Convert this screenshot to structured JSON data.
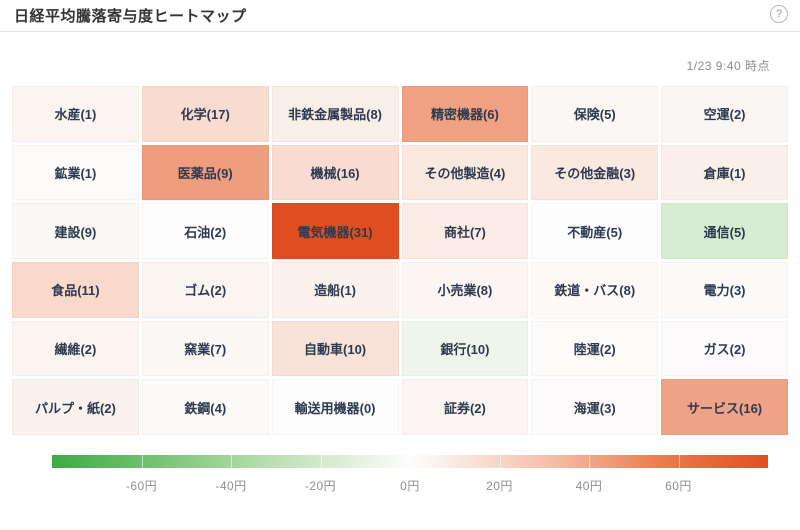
{
  "header": {
    "help_glyph": "?"
  },
  "as_of": "1/23 9:40 時点",
  "chart_data": {
    "type": "heatmap",
    "title": "日経平均騰落寄与度ヒートマップ",
    "as_of": "1/23 9:40 時点",
    "unit": "円",
    "grid": {
      "rows": 6,
      "cols": 6
    },
    "cells": [
      {
        "sector": "水産",
        "count": 1,
        "color": "#fbf4f1",
        "value_yen_approx": 2
      },
      {
        "sector": "化学",
        "count": 17,
        "color": "#f8dcd0",
        "value_yen_approx": 12
      },
      {
        "sector": "非鉄金属製品",
        "count": 8,
        "color": "#faeee8",
        "value_yen_approx": 5
      },
      {
        "sector": "精密機器",
        "count": 6,
        "color": "#f0a184",
        "value_yen_approx": 28
      },
      {
        "sector": "保険",
        "count": 5,
        "color": "#faf7f4",
        "value_yen_approx": 2
      },
      {
        "sector": "空運",
        "count": 2,
        "color": "#faf6f3",
        "value_yen_approx": 2
      },
      {
        "sector": "鉱業",
        "count": 1,
        "color": "#fcfbfa",
        "value_yen_approx": 1
      },
      {
        "sector": "医薬品",
        "count": 9,
        "color": "#ef9d7f",
        "value_yen_approx": 29
      },
      {
        "sector": "機械",
        "count": 16,
        "color": "#f8dcd1",
        "value_yen_approx": 12
      },
      {
        "sector": "その他製造",
        "count": 4,
        "color": "#f9e9e1",
        "value_yen_approx": 7
      },
      {
        "sector": "その他金融",
        "count": 3,
        "color": "#f9e9e1",
        "value_yen_approx": 7
      },
      {
        "sector": "倉庫",
        "count": 1,
        "color": "#faefe9",
        "value_yen_approx": 5
      },
      {
        "sector": "建設",
        "count": 9,
        "color": "#fbf8f6",
        "value_yen_approx": 2
      },
      {
        "sector": "石油",
        "count": 2,
        "color": "#fdfdfd",
        "value_yen_approx": 0
      },
      {
        "sector": "電気機器",
        "count": 31,
        "color": "#e04e20",
        "value_yen_approx": 75
      },
      {
        "sector": "商社",
        "count": 7,
        "color": "#fbece5",
        "value_yen_approx": 6
      },
      {
        "sector": "不動産",
        "count": 5,
        "color": "#fdfdfd",
        "value_yen_approx": 0
      },
      {
        "sector": "通信",
        "count": 5,
        "color": "#d8ecd3",
        "value_yen_approx": -12
      },
      {
        "sector": "食品",
        "count": 11,
        "color": "#f8d9cc",
        "value_yen_approx": 13
      },
      {
        "sector": "ゴム",
        "count": 2,
        "color": "#fbf5f2",
        "value_yen_approx": 3
      },
      {
        "sector": "造船",
        "count": 1,
        "color": "#fbf2ee",
        "value_yen_approx": 4
      },
      {
        "sector": "小売業",
        "count": 8,
        "color": "#fbf6f3",
        "value_yen_approx": 3
      },
      {
        "sector": "鉄道・バス",
        "count": 8,
        "color": "#fcf9f7",
        "value_yen_approx": 1
      },
      {
        "sector": "電力",
        "count": 3,
        "color": "#fbfaf8",
        "value_yen_approx": 1
      },
      {
        "sector": "繊維",
        "count": 2,
        "color": "#fbf4f0",
        "value_yen_approx": 3
      },
      {
        "sector": "窯業",
        "count": 7,
        "color": "#fcf8f6",
        "value_yen_approx": 2
      },
      {
        "sector": "自動車",
        "count": 10,
        "color": "#f9e2d8",
        "value_yen_approx": 10
      },
      {
        "sector": "銀行",
        "count": 10,
        "color": "#eef5eb",
        "value_yen_approx": -5
      },
      {
        "sector": "陸運",
        "count": 2,
        "color": "#fcfbfa",
        "value_yen_approx": 0
      },
      {
        "sector": "ガス",
        "count": 2,
        "color": "#fcfafa",
        "value_yen_approx": 0
      },
      {
        "sector": "パルプ・紙",
        "count": 2,
        "color": "#faf2ee",
        "value_yen_approx": 4
      },
      {
        "sector": "鉄鋼",
        "count": 4,
        "color": "#fcfaf9",
        "value_yen_approx": 1
      },
      {
        "sector": "輸送用機器",
        "count": 0,
        "color": "#fdfdfd",
        "value_yen_approx": 0
      },
      {
        "sector": "証券",
        "count": 2,
        "color": "#fbf5f3",
        "value_yen_approx": 3
      },
      {
        "sector": "海運",
        "count": 3,
        "color": "#fcfafa",
        "value_yen_approx": 0
      },
      {
        "sector": "サービス",
        "count": 16,
        "color": "#f0a287",
        "value_yen_approx": 28
      }
    ],
    "colorbar": {
      "range_yen": [
        -80,
        80
      ],
      "segments": 8,
      "ticks": [
        {
          "value": -60,
          "label": "-60円"
        },
        {
          "value": -40,
          "label": "-40円"
        },
        {
          "value": -20,
          "label": "-20円"
        },
        {
          "value": 0,
          "label": "0円"
        },
        {
          "value": 20,
          "label": "20円"
        },
        {
          "value": 40,
          "label": "40円"
        },
        {
          "value": 60,
          "label": "60円"
        }
      ],
      "gradient_stops": [
        {
          "pos": 0,
          "color": "#3dab44"
        },
        {
          "pos": 15,
          "color": "#77c474"
        },
        {
          "pos": 30,
          "color": "#b7dfae"
        },
        {
          "pos": 44,
          "color": "#e9f3e4"
        },
        {
          "pos": 50,
          "color": "#fdfdfd"
        },
        {
          "pos": 56,
          "color": "#fbeae3"
        },
        {
          "pos": 70,
          "color": "#f5bda6"
        },
        {
          "pos": 85,
          "color": "#ea7c4d"
        },
        {
          "pos": 100,
          "color": "#e05022"
        }
      ]
    }
  }
}
